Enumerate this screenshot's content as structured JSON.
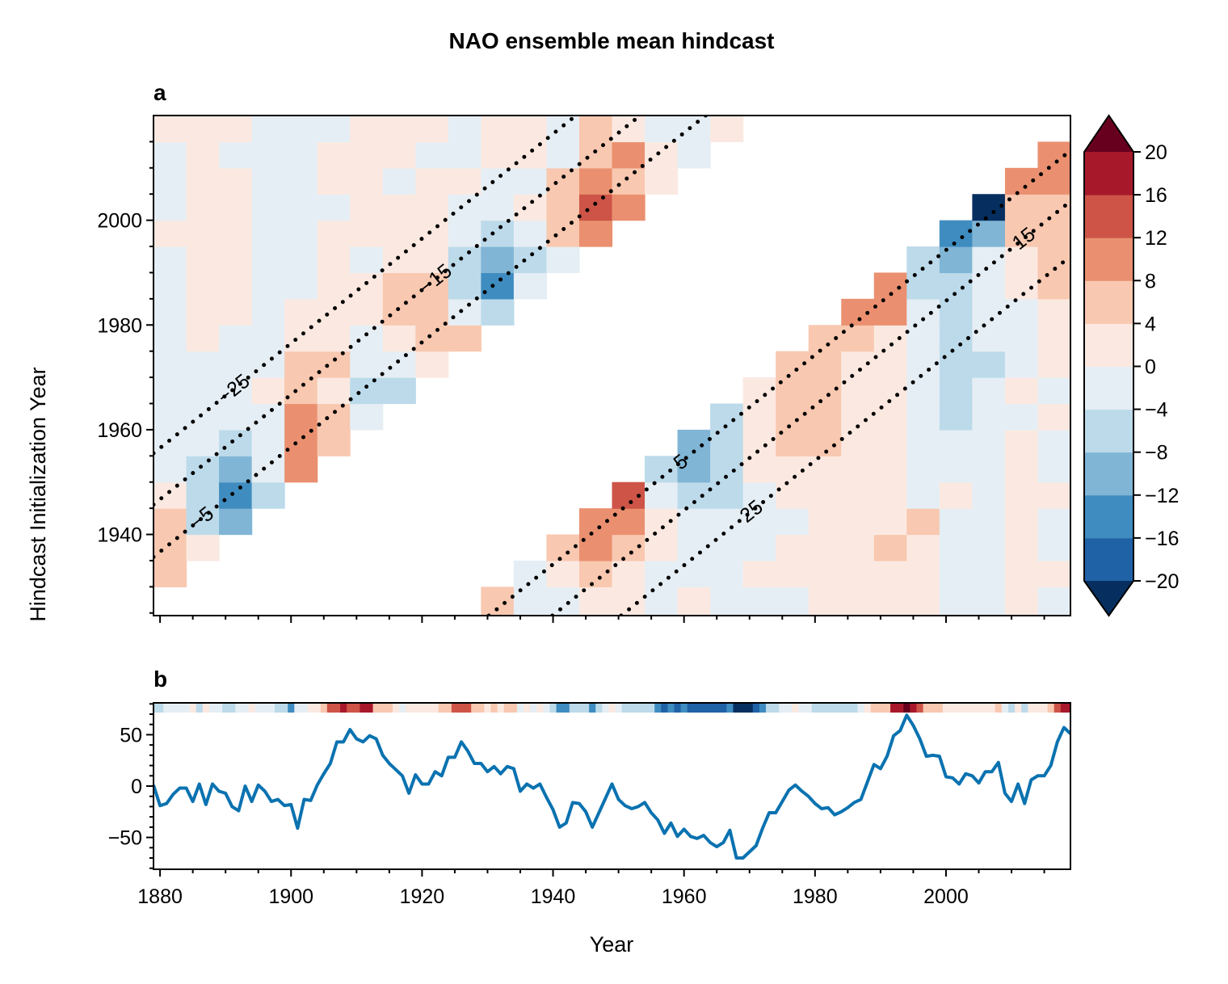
{
  "title": "NAO ensemble mean hindcast",
  "chart_data": [
    {
      "panel": "a",
      "type": "heatmap",
      "xlabel": "",
      "ylabel": "Hindcast Initialization Year",
      "xlim": [
        1879,
        2019
      ],
      "ylim": [
        1924.5,
        2020
      ],
      "xticks": [
        1880,
        1900,
        1920,
        1940,
        1960,
        1980,
        2000
      ],
      "yticks": [
        1940,
        1960,
        1980,
        2000
      ],
      "x_bin_starts": [
        1879,
        1884,
        1889,
        1894,
        1899,
        1904,
        1909,
        1914,
        1919,
        1924,
        1929,
        1934,
        1939,
        1944,
        1949,
        1954,
        1959,
        1964,
        1969,
        1974,
        1979,
        1984,
        1989,
        1994,
        1999,
        2004,
        2009,
        2014
      ],
      "y_bin_starts": [
        1925,
        1930,
        1935,
        1940,
        1945,
        1950,
        1955,
        1960,
        1965,
        1970,
        1975,
        1980,
        1985,
        1990,
        1995,
        2000,
        2005,
        2010,
        2015
      ],
      "z": [
        [
          null,
          null,
          null,
          null,
          null,
          null,
          null,
          null,
          null,
          null,
          6,
          -2,
          -2,
          2,
          2,
          -2,
          2,
          -2,
          -2,
          -2,
          2,
          2,
          2,
          2,
          -2,
          -2,
          2,
          -2
        ],
        [
          6,
          null,
          null,
          null,
          null,
          null,
          null,
          null,
          null,
          null,
          null,
          -2,
          2,
          6,
          2,
          -2,
          -2,
          -2,
          2,
          2,
          2,
          2,
          2,
          2,
          -2,
          -2,
          2,
          2
        ],
        [
          6,
          2,
          null,
          null,
          null,
          null,
          null,
          null,
          null,
          null,
          null,
          null,
          6,
          10,
          6,
          2,
          -2,
          -2,
          -2,
          2,
          2,
          2,
          6,
          2,
          -2,
          -2,
          2,
          -2
        ],
        [
          6,
          -6,
          -10,
          null,
          null,
          null,
          null,
          null,
          null,
          null,
          null,
          null,
          null,
          10,
          10,
          2,
          -2,
          -2,
          -2,
          -2,
          2,
          2,
          2,
          6,
          -2,
          -2,
          2,
          -2
        ],
        [
          2,
          -6,
          -14,
          -6,
          null,
          null,
          null,
          null,
          null,
          null,
          null,
          null,
          null,
          null,
          14,
          -2,
          -6,
          -6,
          -2,
          2,
          2,
          2,
          2,
          -2,
          2,
          -2,
          2,
          2
        ],
        [
          -2,
          -6,
          -10,
          -2,
          10,
          null,
          null,
          null,
          null,
          null,
          null,
          null,
          null,
          null,
          null,
          -6,
          -10,
          -6,
          2,
          2,
          2,
          2,
          2,
          -2,
          -2,
          -2,
          2,
          -2
        ],
        [
          -2,
          -2,
          -6,
          -2,
          10,
          6,
          null,
          null,
          null,
          null,
          null,
          null,
          null,
          null,
          null,
          null,
          -10,
          -6,
          2,
          6,
          6,
          2,
          2,
          -2,
          -2,
          -2,
          2,
          -2
        ],
        [
          -2,
          -2,
          -2,
          -2,
          10,
          6,
          -2,
          null,
          null,
          null,
          null,
          null,
          null,
          null,
          null,
          null,
          null,
          -6,
          2,
          6,
          6,
          2,
          2,
          -2,
          -6,
          -2,
          -2,
          2
        ],
        [
          -2,
          -2,
          -2,
          2,
          6,
          2,
          -6,
          -6,
          null,
          null,
          null,
          null,
          null,
          null,
          null,
          null,
          null,
          null,
          2,
          6,
          6,
          2,
          2,
          -2,
          -6,
          -2,
          2,
          -2
        ],
        [
          -2,
          -2,
          -2,
          -2,
          6,
          6,
          -2,
          -2,
          2,
          null,
          null,
          null,
          null,
          null,
          null,
          null,
          null,
          null,
          null,
          6,
          6,
          2,
          2,
          -2,
          -6,
          -6,
          -2,
          2
        ],
        [
          -2,
          2,
          -2,
          -2,
          2,
          2,
          -2,
          2,
          6,
          6,
          null,
          null,
          null,
          null,
          null,
          null,
          null,
          null,
          null,
          null,
          6,
          6,
          2,
          -2,
          -6,
          -2,
          -2,
          2
        ],
        [
          -2,
          2,
          2,
          -2,
          2,
          2,
          2,
          6,
          6,
          -2,
          -6,
          null,
          null,
          null,
          null,
          null,
          null,
          null,
          null,
          null,
          null,
          10,
          10,
          -2,
          -6,
          -2,
          -2,
          2
        ],
        [
          -2,
          2,
          2,
          -2,
          -2,
          2,
          2,
          6,
          6,
          -6,
          -14,
          -2,
          null,
          null,
          null,
          null,
          null,
          null,
          null,
          null,
          null,
          null,
          10,
          -6,
          -6,
          -2,
          2,
          6
        ],
        [
          -2,
          2,
          2,
          -2,
          -2,
          2,
          -2,
          2,
          2,
          -6,
          -10,
          -6,
          -2,
          null,
          null,
          null,
          null,
          null,
          null,
          null,
          null,
          null,
          null,
          -6,
          -10,
          -2,
          2,
          6
        ],
        [
          2,
          2,
          2,
          -2,
          -2,
          2,
          2,
          2,
          2,
          -2,
          -6,
          -2,
          6,
          10,
          null,
          null,
          null,
          null,
          null,
          null,
          null,
          null,
          null,
          null,
          -14,
          -10,
          6,
          6
        ],
        [
          -2,
          2,
          2,
          -2,
          -2,
          -2,
          2,
          2,
          2,
          -2,
          -2,
          2,
          6,
          14,
          10,
          null,
          null,
          null,
          null,
          null,
          null,
          null,
          null,
          null,
          null,
          -22,
          6,
          6
        ],
        [
          -2,
          2,
          2,
          -2,
          -2,
          2,
          2,
          -2,
          2,
          2,
          -2,
          -2,
          6,
          10,
          6,
          2,
          null,
          null,
          null,
          null,
          null,
          null,
          null,
          null,
          null,
          null,
          10,
          10
        ],
        [
          -2,
          2,
          -2,
          -2,
          -2,
          2,
          2,
          2,
          -2,
          -2,
          2,
          2,
          -2,
          6,
          10,
          2,
          -2,
          null,
          null,
          null,
          null,
          null,
          null,
          null,
          null,
          null,
          null,
          10
        ],
        [
          2,
          2,
          2,
          -2,
          -2,
          -2,
          2,
          2,
          2,
          -2,
          2,
          2,
          -2,
          6,
          2,
          -2,
          -2,
          2,
          null,
          null,
          null,
          null,
          null,
          null,
          null,
          null,
          null,
          null
        ]
      ],
      "colorbar": {
        "levels": [
          -20,
          -16,
          -12,
          -8,
          -4,
          0,
          4,
          8,
          12,
          16,
          20
        ],
        "ticks": [
          20,
          16,
          12,
          8,
          4,
          0,
          -4,
          -8,
          -12,
          -16,
          -20
        ],
        "tick_labels": [
          "20",
          "16",
          "12",
          "8",
          "4",
          "0",
          "−4",
          "−8",
          "−12",
          "−16",
          "−20"
        ],
        "extend": "both",
        "colors": [
          "#2062a6",
          "#3f8cc0",
          "#80b5d5",
          "#bcdaea",
          "#e5eef4",
          "#fbe9e1",
          "#f8c8b0",
          "#ea9070",
          "#cd5447",
          "#a8182b"
        ],
        "over_color": "#67001f",
        "under_color": "#062f60"
      },
      "contours": [
        {
          "label": "−25",
          "points": [
            [
              1879,
              1955.5
            ],
            [
              1943.5,
              2020
            ]
          ]
        },
        {
          "label": "−15",
          "points": [
            [
              1879,
              1945.7
            ],
            [
              1953.3,
              2020
            ]
          ]
        },
        {
          "label": "−5",
          "points": [
            [
              1879,
              1935.7
            ],
            [
              1963.3,
              2020
            ]
          ]
        },
        {
          "label": "5",
          "points": [
            [
              1930.2,
              1924.5
            ],
            [
              2019,
              2013.3
            ]
          ]
        },
        {
          "label": "15",
          "points": [
            [
              1939.9,
              1924.5
            ],
            [
              2019,
              2003.6
            ]
          ]
        },
        {
          "label": "25",
          "points": [
            [
              1950.4,
              1924.5
            ],
            [
              2019,
              1993.1
            ]
          ]
        }
      ]
    },
    {
      "panel": "b",
      "type": "line",
      "xlabel": "Year",
      "ylabel": "",
      "xlim": [
        1879,
        2019
      ],
      "ylim": [
        -81,
        81
      ],
      "xticks": [
        1880,
        1900,
        1920,
        1940,
        1960,
        1980,
        2000
      ],
      "xtick_labels": [
        "1880",
        "1900",
        "1920",
        "1940",
        "1960",
        "1980",
        "2000"
      ],
      "yticks": [
        -50,
        0,
        50
      ],
      "ytick_labels": [
        "−50",
        "0",
        "50"
      ],
      "line_color": "#0a72b0",
      "years": [
        1879,
        1880,
        1881,
        1882,
        1883,
        1884,
        1885,
        1886,
        1887,
        1888,
        1889,
        1890,
        1891,
        1892,
        1893,
        1894,
        1895,
        1896,
        1897,
        1898,
        1899,
        1900,
        1901,
        1902,
        1903,
        1904,
        1905,
        1906,
        1907,
        1908,
        1909,
        1910,
        1911,
        1912,
        1913,
        1914,
        1915,
        1916,
        1917,
        1918,
        1919,
        1920,
        1921,
        1922,
        1923,
        1924,
        1925,
        1926,
        1927,
        1928,
        1929,
        1930,
        1931,
        1932,
        1933,
        1934,
        1935,
        1936,
        1937,
        1938,
        1939,
        1940,
        1941,
        1942,
        1943,
        1944,
        1945,
        1946,
        1947,
        1948,
        1949,
        1950,
        1951,
        1952,
        1953,
        1954,
        1955,
        1956,
        1957,
        1958,
        1959,
        1960,
        1961,
        1962,
        1963,
        1964,
        1965,
        1966,
        1967,
        1968,
        1969,
        1970,
        1971,
        1972,
        1973,
        1974,
        1975,
        1976,
        1977,
        1978,
        1979,
        1980,
        1981,
        1982,
        1983,
        1984,
        1985,
        1986,
        1987,
        1988,
        1989,
        1990,
        1991,
        1992,
        1993,
        1994,
        1995,
        1996,
        1997,
        1998,
        1999,
        2000,
        2001,
        2002,
        2003,
        2004,
        2005,
        2006,
        2007,
        2008,
        2009,
        2010,
        2011,
        2012,
        2013,
        2014,
        2015,
        2016,
        2017,
        2018,
        2019
      ],
      "values": [
        1,
        -19,
        -17,
        -8,
        -2,
        -2,
        -15,
        2,
        -18,
        2,
        -5,
        -7,
        -20,
        -24,
        0,
        -15,
        1,
        -5,
        -15,
        -13,
        -19,
        -18,
        -41,
        -13,
        -14,
        1,
        12,
        22,
        43,
        43,
        55,
        46,
        43,
        49,
        46,
        30,
        22,
        16,
        10,
        -7,
        11,
        2,
        2,
        14,
        10,
        28,
        28,
        43,
        34,
        22,
        22,
        14,
        19,
        12,
        19,
        17,
        -5,
        2,
        -2,
        2,
        -11,
        -23,
        -40,
        -36,
        -16,
        -17,
        -25,
        -40,
        -26,
        -12,
        2,
        -13,
        -19,
        -22,
        -20,
        -16,
        -26,
        -33,
        -46,
        -36,
        -49,
        -42,
        -49,
        -51,
        -48,
        -55,
        -59,
        -55,
        -43,
        -70,
        -70,
        -64,
        -58,
        -41,
        -26,
        -26,
        -15,
        -4,
        1,
        -5,
        -10,
        -17,
        -22,
        -21,
        -28,
        -25,
        -21,
        -16,
        -13,
        4,
        21,
        17,
        29,
        49,
        54,
        69,
        59,
        46,
        29,
        30,
        29,
        9,
        8,
        2,
        12,
        10,
        3,
        14,
        14,
        23,
        -7,
        -15,
        2,
        -17,
        6,
        10,
        10,
        20,
        43,
        57,
        51
      ],
      "strip_values": [
        -6,
        -6,
        -2,
        -2,
        -2,
        -2,
        2,
        -6,
        2,
        -2,
        -2,
        -6,
        -6,
        -2,
        -2,
        2,
        -2,
        -2,
        -2,
        -6,
        -6,
        -14,
        -2,
        -2,
        2,
        2,
        6,
        14,
        14,
        18,
        14,
        14,
        18,
        18,
        6,
        6,
        6,
        2,
        -2,
        2,
        2,
        2,
        2,
        2,
        6,
        6,
        14,
        14,
        14,
        6,
        6,
        2,
        6,
        2,
        6,
        6,
        -2,
        2,
        -2,
        2,
        -2,
        -6,
        -14,
        -14,
        -6,
        -6,
        -6,
        -14,
        -6,
        -2,
        2,
        -2,
        -6,
        -6,
        -6,
        -6,
        -6,
        -14,
        -18,
        -14,
        -18,
        -14,
        -18,
        -18,
        -18,
        -18,
        -18,
        -18,
        -14,
        -22,
        -22,
        -22,
        -18,
        -14,
        -6,
        -6,
        -2,
        -2,
        2,
        -2,
        -2,
        -6,
        -6,
        -6,
        -6,
        -6,
        -6,
        -6,
        -2,
        2,
        6,
        6,
        6,
        18,
        18,
        22,
        18,
        14,
        6,
        6,
        6,
        2,
        2,
        2,
        2,
        2,
        2,
        2,
        2,
        6,
        -2,
        -6,
        2,
        -6,
        2,
        2,
        2,
        6,
        14,
        18,
        18
      ]
    }
  ]
}
